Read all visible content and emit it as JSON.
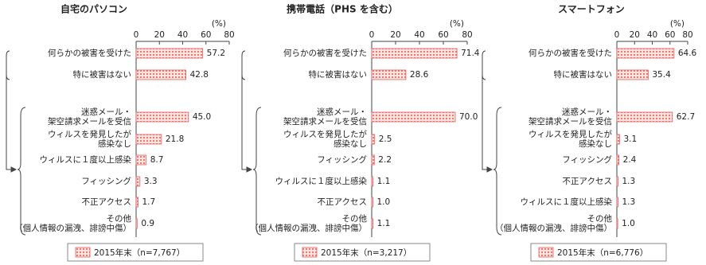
{
  "chart_data": [
    {
      "type": "bar",
      "orientation": "horizontal",
      "title": "自宅のパソコン",
      "unit": "(%)",
      "categories": [
        "何らかの被害を受けた",
        "特に被害はない",
        "迷惑メール・\n架空請求メールを受信",
        "ウィルスを発見したが\n感染なし",
        "ウィルスに１度以上感染",
        "フィッシング",
        "不正アクセス",
        "その他\n（個人情報の漏洩、誹謗中傷）"
      ],
      "series": [
        {
          "name": "2015年末（n=7,767）",
          "color": "#e06060",
          "values": [
            57.2,
            42.8,
            45.0,
            21.8,
            8.7,
            3.3,
            1.7,
            0.9
          ],
          "value_labels": [
            "57.2",
            "42.8",
            "45.0",
            "21.8",
            "8.7",
            "3.3",
            "1.7",
            "0.9"
          ]
        }
      ],
      "xlim": [
        0,
        80
      ],
      "xticks": [
        0,
        20,
        40,
        60,
        80
      ]
    },
    {
      "type": "bar",
      "orientation": "horizontal",
      "title": "携帯電話（PHS を含む）",
      "unit": "(%)",
      "categories": [
        "何らかの被害を受けた",
        "特に被害はない",
        "迷惑メール・\n架空請求メールを受信",
        "ウィルスを発見したが\n感染なし",
        "フィッシング",
        "ウィルスに１度以上感染",
        "不正アクセス",
        "その他\n（個人情報の漏洩、誹謗中傷）"
      ],
      "series": [
        {
          "name": "2015年末（n=3,217）",
          "color": "#e06060",
          "values": [
            71.4,
            28.6,
            70.0,
            2.5,
            2.2,
            1.1,
            1.0,
            1.1
          ],
          "value_labels": [
            "71.4",
            "28.6",
            "70.0",
            "2.5",
            "2.2",
            "1.1",
            "1.0",
            "1.1"
          ]
        }
      ],
      "xlim": [
        0,
        80
      ],
      "xticks": [
        0,
        20,
        40,
        60,
        80
      ]
    },
    {
      "type": "bar",
      "orientation": "horizontal",
      "title": "スマートフォン",
      "unit": "(%)",
      "categories": [
        "何らかの被害を受けた",
        "特に被害はない",
        "迷惑メール・\n架空請求メールを受信",
        "ウィルスを発見したが\n感染なし",
        "フィッシング",
        "不正アクセス",
        "ウィルスに１度以上感染",
        "その他\n（個人情報の漏洩、誹謗中傷）"
      ],
      "series": [
        {
          "name": "2015年末（n=6,776）",
          "color": "#e06060",
          "values": [
            64.6,
            35.4,
            62.7,
            3.1,
            2.4,
            1.3,
            1.3,
            1.0
          ],
          "value_labels": [
            "64.6",
            "35.4",
            "62.7",
            "3.1",
            "2.4",
            "1.3",
            "1.3",
            "1.0"
          ]
        }
      ],
      "xlim": [
        0,
        80
      ],
      "xticks": [
        0,
        20,
        40,
        60,
        80
      ]
    }
  ]
}
